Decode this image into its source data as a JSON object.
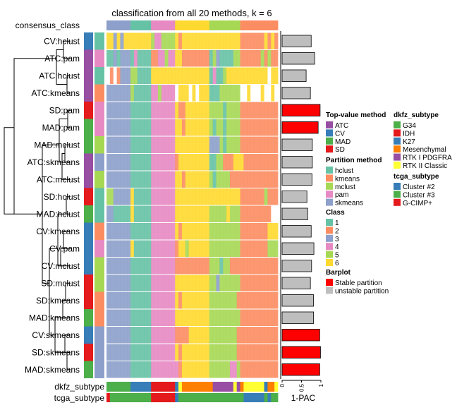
{
  "chart_data": {
    "type": "heatmap",
    "title": "classification from all 20 methods, k = 6",
    "consensus_label": "consensus_class",
    "consensus_class": "33333331111114444444666666666655555555522222222222",
    "class_colors": {
      "1": "#66C2A5",
      "2": "#FC8D62",
      "3": "#8DA0CB",
      "4": "#E78AC3",
      "5": "#A6D854",
      "6": "#FFD92F",
      ".": "#FFFFFF"
    },
    "rows": [
      {
        "label": "CV:hclust",
        "top": "CV",
        "partition": "hclust",
        "classes": "66363666666665445555626666666666666666622222226262",
        "pac": 0.75,
        "stable": false
      },
      {
        "label": "ATC:pam",
        "top": "ATC",
        "partition": "pam",
        "classes": "11313331411112244544662222222215311115522222252522",
        "pac": 0.84,
        "stable": false
      },
      {
        "label": "ATC:hclust",
        "top": "ATC",
        "partition": "hclust",
        "classes": ".2.23335511116666666666666666614115666666666666.66",
        "pac": 0.62,
        "stable": false
      },
      {
        "label": "ATC:kmeans",
        "top": "ATC",
        "partition": "kmeans",
        "classes": "33333335111114454444.666.6.666111555555..6...6..6.",
        "pac": 0.73,
        "stable": false
      },
      {
        "label": "SD:pam",
        "top": "SD",
        "partition": "pam",
        "classes": "33333331111114444444622666666655551555522222222222",
        "pac": 0.98,
        "stable": true
      },
      {
        "label": "MAD:pam",
        "top": "MAD",
        "partition": "pam",
        "classes": "33333331111114444444662666666651551555522222222222",
        "pac": 0.93,
        "stable": true
      },
      {
        "label": "MAD:mclust",
        "top": "MAD",
        "partition": "mclust",
        "classes": "33333331111114444444666666666633351555522222222222",
        "pac": 0.78,
        "stable": false
      },
      {
        "label": "ATC:skmeans",
        "top": "ATC",
        "partition": "skmeans",
        "classes": "33333331111114444444266666666611552226662222222222",
        "pac": 0.78,
        "stable": false
      },
      {
        "label": "ATC:mclust",
        "top": "ATC",
        "partition": "mclust",
        "classes": "33333331111114444444662666666651555522222222222222",
        "pac": 0.77,
        "stable": false
      },
      {
        "label": "SD:hclust",
        "top": "SD",
        "partition": "hclust",
        "classes": "55333336111114444444666666666666666666622222225222",
        "pac": 0.64,
        "stable": false
      },
      {
        "label": "MAD:hclust",
        "top": "MAD",
        "partition": "hclust",
        "classes": "331111161111144444446666666666555556555222222222..",
        "pac": 0.66,
        "stable": false
      },
      {
        "label": "CV:kmeans",
        "top": "CV",
        "partition": "kmeans",
        "classes": "33333331111114444444626666666655555555522222222666",
        "pac": 0.75,
        "stable": false
      },
      {
        "label": "CV:pam",
        "top": "CV",
        "partition": "pam",
        "classes": "33333336111114444444266566666655555555522222222555",
        "pac": 0.82,
        "stable": false
      },
      {
        "label": "CV:mclust",
        "top": "CV",
        "partition": "mclust",
        "classes": "33333331111114444444222222222255515522222222222222",
        "pac": 0.76,
        "stable": false
      },
      {
        "label": "SD:mclust",
        "top": "SD",
        "partition": "mclust",
        "classes": "33333331111114444444666666666655355555522222222222",
        "pac": 0.73,
        "stable": false
      },
      {
        "label": "SD:kmeans",
        "top": "SD",
        "partition": "kmeans",
        "classes": "33333331111114444444626666666655555555222222222222",
        "pac": 0.81,
        "stable": false
      },
      {
        "label": "MAD:kmeans",
        "top": "MAD",
        "partition": "kmeans",
        "classes": "33333331111114444444666666666655555555522222222222",
        "pac": 0.81,
        "stable": false
      },
      {
        "label": "CV:skmeans",
        "top": "CV",
        "partition": "skmeans",
        "classes": "33333331111114444444222266666655555555222222222222",
        "pac": 0.97,
        "stable": true
      },
      {
        "label": "SD:skmeans",
        "top": "SD",
        "partition": "skmeans",
        "classes": "33333331111114444444626666666655555555222222222222",
        "pac": 0.99,
        "stable": true
      },
      {
        "label": "MAD:skmeans",
        "top": "MAD",
        "partition": "skmeans",
        "classes": "33333331111114444444426666666655555544522222222222",
        "pac": 0.97,
        "stable": true
      }
    ],
    "dkfz_label": "dkfz_subtype",
    "dkfz_subtype": [
      "G34",
      "G34",
      "G34",
      "G34",
      "G34",
      "G34",
      "G34",
      "K27",
      "K27",
      "K27",
      "K27",
      "K27",
      "K27",
      "IDH",
      "IDH",
      "IDH",
      "IDH",
      "IDH",
      "IDH",
      "IDH",
      "K27",
      "RTK II Classic",
      "Mesenchymal",
      "Mesenchymal",
      "Mesenchymal",
      "Mesenchymal",
      "Mesenchymal",
      "Mesenchymal",
      "Mesenchymal",
      "Mesenchymal",
      "Mesenchymal",
      "RTK I PDGFRA",
      "RTK I PDGFRA",
      "RTK I PDGFRA",
      "RTK I PDGFRA",
      "RTK I PDGFRA",
      "RTK I PDGFRA",
      "RTK II Classic",
      "RTK I PDGFRA",
      "Mesenchymal",
      "RTK II Classic",
      "RTK II Classic",
      "RTK II Classic",
      "RTK II Classic",
      "RTK II Classic",
      "RTK II Classic",
      "K27",
      "Mesenchymal",
      "Mesenchymal",
      "RTK II Classic"
    ],
    "tcga_label": "tcga_subtype",
    "tcga_subtype": [
      "G-CIMP+",
      "Cluster #3",
      "Cluster #3",
      "Cluster #3",
      "Cluster #3",
      "Cluster #3",
      "Cluster #3",
      "Cluster #3",
      "Cluster #3",
      "Cluster #3",
      "Cluster #3",
      "Cluster #3",
      "Cluster #3",
      "G-CIMP+",
      "G-CIMP+",
      "G-CIMP+",
      "G-CIMP+",
      "G-CIMP+",
      "G-CIMP+",
      "G-CIMP+",
      "Cluster #2",
      "Cluster #3",
      "Cluster #3",
      "Cluster #3",
      "Cluster #3",
      "Cluster #3",
      "Cluster #3",
      "Cluster #3",
      "Cluster #3",
      "Cluster #3",
      "Cluster #3",
      "Cluster #3",
      "Cluster #3",
      "Cluster #3",
      "Cluster #3",
      "Cluster #3",
      "Cluster #3",
      "Cluster #3",
      "Cluster #3",
      "Cluster #3",
      "Cluster #2",
      "Cluster #2",
      "Cluster #2",
      "Cluster #2",
      "Cluster #2",
      "Cluster #2",
      "Cluster #3",
      "Cluster #2",
      "Cluster #3",
      "Cluster #3"
    ],
    "barplot": {
      "xlabel": "1-PAC",
      "xlim": [
        0,
        1
      ],
      "ticks": [
        "0",
        "0.5",
        "1"
      ]
    }
  },
  "legend": {
    "top_value": {
      "title": "Top-value method",
      "items": [
        {
          "label": "ATC",
          "color": "#984EA3"
        },
        {
          "label": "CV",
          "color": "#377EB8"
        },
        {
          "label": "MAD",
          "color": "#4DAF4A"
        },
        {
          "label": "SD",
          "color": "#E41A1C"
        }
      ]
    },
    "partition": {
      "title": "Partition method",
      "items": [
        {
          "label": "hclust",
          "color": "#66C2A5"
        },
        {
          "label": "kmeans",
          "color": "#FC8D62"
        },
        {
          "label": "mclust",
          "color": "#A6D854"
        },
        {
          "label": "pam",
          "color": "#E78AC3"
        },
        {
          "label": "skmeans",
          "color": "#8DA0CB"
        }
      ]
    },
    "class": {
      "title": "Class",
      "items": [
        {
          "label": "1",
          "color": "#66C2A5"
        },
        {
          "label": "2",
          "color": "#FC8D62"
        },
        {
          "label": "3",
          "color": "#8DA0CB"
        },
        {
          "label": "4",
          "color": "#E78AC3"
        },
        {
          "label": "5",
          "color": "#A6D854"
        },
        {
          "label": "6",
          "color": "#FFD92F"
        }
      ]
    },
    "barplot": {
      "title": "Barplot",
      "items": [
        {
          "label": "Stable partition",
          "color": "#FF0000"
        },
        {
          "label": "unstable partition",
          "color": "#BEBEBE"
        }
      ]
    },
    "dkfz": {
      "title": "dkfz_subtype",
      "items": [
        {
          "label": "G34",
          "color": "#4DAF4A"
        },
        {
          "label": "IDH",
          "color": "#E41A1C"
        },
        {
          "label": "K27",
          "color": "#377EB8"
        },
        {
          "label": "Mesenchymal",
          "color": "#FF7F00"
        },
        {
          "label": "RTK I PDGFRA",
          "color": "#984EA3"
        },
        {
          "label": "RTK II Classic",
          "color": "#FFFF33"
        }
      ]
    },
    "tcga": {
      "title": "tcga_subtype",
      "items": [
        {
          "label": "Cluster #2",
          "color": "#377EB8"
        },
        {
          "label": "Cluster #3",
          "color": "#4DAF4A"
        },
        {
          "label": "G-CIMP+",
          "color": "#E41A1C"
        }
      ]
    }
  }
}
